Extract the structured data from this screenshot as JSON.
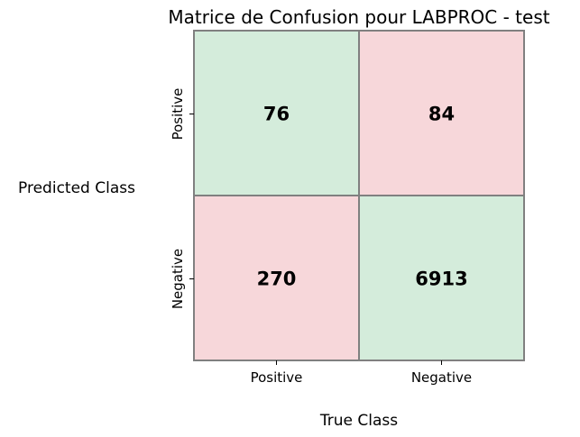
{
  "chart_data": {
    "type": "heatmap",
    "title": "Matrice de Confusion pour LABPROC - test",
    "xlabel": "True Class",
    "ylabel": "Predicted Class",
    "x_categories": [
      "Positive",
      "Negative"
    ],
    "y_categories": [
      "Positive",
      "Negative"
    ],
    "matrix": [
      [
        76,
        84
      ],
      [
        270,
        6913
      ]
    ],
    "cells": [
      {
        "row": "Positive",
        "col": "Positive",
        "value": "76"
      },
      {
        "row": "Positive",
        "col": "Negative",
        "value": "84"
      },
      {
        "row": "Negative",
        "col": "Positive",
        "value": "270"
      },
      {
        "row": "Negative",
        "col": "Negative",
        "value": "6913"
      }
    ],
    "colors": {
      "correct": "#d4ecdb",
      "incorrect": "#f7d7da",
      "border": "#808080"
    },
    "grid": true,
    "legend": "none"
  }
}
